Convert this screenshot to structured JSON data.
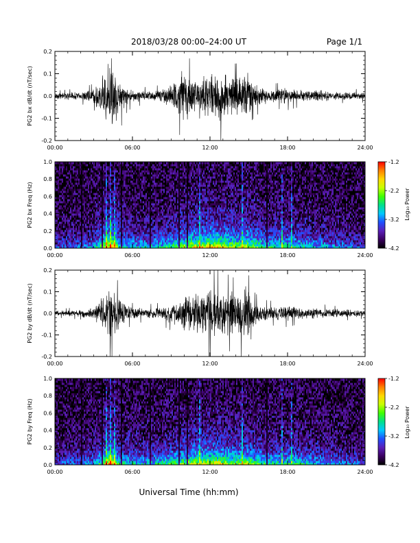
{
  "header": {
    "title": "2018/03/28   00:00–24:00 UT",
    "page": "Page 1/1"
  },
  "xlabel": "Universal Time (hh:mm)",
  "colorbar": {
    "label": "Log₁₀ Power",
    "ticks": [
      "-1.2",
      "-2.2",
      "-3.2",
      "-4.2"
    ],
    "range": [
      -4.2,
      -1.2
    ],
    "colors": [
      "#000000",
      "#3a005f",
      "#5a1fb8",
      "#1f4fff",
      "#00c8ff",
      "#00e08a",
      "#40ff00",
      "#c8ff00",
      "#ffd800",
      "#ff8000",
      "#ff0000"
    ]
  },
  "chart_data": [
    {
      "type": "line",
      "ylabel": "PG2 bx dB/dt (nT/sec)",
      "xlim": [
        0,
        24
      ],
      "ylim": [
        -0.2,
        0.2
      ],
      "xticks": [
        "00:00",
        "06:00",
        "12:00",
        "18:00",
        "24:00"
      ],
      "yticks": [
        "0.2",
        "0.1",
        "0.0",
        "-0.1",
        "-0.2"
      ],
      "series": [
        {
          "x": [
            0,
            1,
            2,
            3,
            3.5,
            4,
            4.3,
            4.6,
            4.9,
            5.2,
            5.5,
            6,
            7,
            8,
            9,
            9.5,
            10,
            10.5,
            11,
            11.5,
            12,
            12.5,
            13,
            13.5,
            14,
            14.5,
            14.8,
            15.2,
            16,
            17,
            18,
            19,
            20,
            21,
            22,
            23,
            24
          ],
          "y": [
            0.015,
            0.018,
            0.022,
            0.035,
            0.09,
            0.12,
            0.21,
            0.16,
            0.1,
            0.08,
            0.05,
            0.03,
            0.025,
            0.03,
            0.06,
            0.1,
            0.13,
            0.1,
            0.09,
            0.12,
            0.1,
            0.13,
            0.12,
            0.1,
            0.09,
            0.11,
            0.14,
            0.07,
            0.04,
            0.035,
            0.04,
            0.03,
            0.03,
            0.025,
            0.02,
            0.02,
            0.018
          ]
        }
      ]
    },
    {
      "type": "heatmap",
      "ylabel": "PG2 bx Freq (Hz)",
      "xlim": [
        0,
        24
      ],
      "ylim": [
        0,
        1.0
      ],
      "xticks": [
        "00:00",
        "06:00",
        "12:00",
        "18:00",
        "24:00"
      ],
      "yticks": [
        "1.0",
        "0.8",
        "0.6",
        "0.4",
        "0.2",
        "0.0"
      ],
      "zlim": [
        -4.2,
        -1.2
      ],
      "activity_x": [
        0,
        1,
        2,
        3,
        3.5,
        4,
        4.3,
        4.6,
        5,
        5.5,
        6,
        7,
        8,
        9,
        10,
        11,
        12,
        13,
        14,
        15,
        16,
        17,
        18,
        19,
        20,
        21,
        22,
        23,
        24
      ],
      "activity": [
        0.25,
        0.3,
        0.3,
        0.4,
        0.65,
        0.9,
        1.0,
        0.85,
        0.6,
        0.5,
        0.45,
        0.45,
        0.5,
        0.6,
        0.75,
        0.85,
        0.9,
        0.85,
        0.75,
        0.8,
        0.6,
        0.55,
        0.55,
        0.5,
        0.45,
        0.4,
        0.35,
        0.3,
        0.25
      ],
      "bright_columns": [
        4.0,
        4.3,
        4.6,
        11.2,
        14.5,
        17.6,
        18.3
      ],
      "dark_columns": [
        2.1,
        3.7,
        5.2,
        7.4,
        9.6,
        10.2,
        13.7,
        16.4
      ]
    },
    {
      "type": "line",
      "ylabel": "PG2 by dB/dt (nT/sec)",
      "xlim": [
        0,
        24
      ],
      "ylim": [
        -0.2,
        0.2
      ],
      "xticks": [
        "00:00",
        "06:00",
        "12:00",
        "18:00",
        "24:00"
      ],
      "yticks": [
        "0.2",
        "0.1",
        "0.0",
        "-0.1",
        "-0.2"
      ],
      "series": [
        {
          "x": [
            0,
            1,
            2,
            3,
            3.5,
            4,
            4.3,
            4.6,
            4.9,
            5.2,
            5.5,
            6,
            7,
            8,
            9,
            9.5,
            10,
            10.5,
            11,
            11.5,
            12,
            12.5,
            13,
            13.5,
            14,
            14.5,
            14.8,
            15.2,
            16,
            17,
            18,
            19,
            20,
            21,
            22,
            23,
            24
          ],
          "y": [
            0.012,
            0.015,
            0.018,
            0.03,
            0.07,
            0.1,
            0.17,
            0.12,
            0.09,
            0.07,
            0.05,
            0.03,
            0.025,
            0.03,
            0.05,
            0.07,
            0.09,
            0.1,
            0.1,
            0.12,
            0.14,
            0.13,
            0.12,
            0.11,
            0.1,
            0.13,
            0.15,
            0.07,
            0.04,
            0.035,
            0.04,
            0.03,
            0.03,
            0.025,
            0.02,
            0.02,
            0.015
          ]
        }
      ]
    },
    {
      "type": "heatmap",
      "ylabel": "PG2 by Freq (Hz)",
      "xlim": [
        0,
        24
      ],
      "ylim": [
        0,
        1.0
      ],
      "xticks": [
        "00:00",
        "06:00",
        "12:00",
        "18:00",
        "24:00"
      ],
      "yticks": [
        "1.0",
        "0.8",
        "0.6",
        "0.4",
        "0.2",
        "0.0"
      ],
      "zlim": [
        -4.2,
        -1.2
      ],
      "activity_x": [
        0,
        1,
        2,
        3,
        3.5,
        4,
        4.3,
        4.6,
        5,
        5.5,
        6,
        7,
        8,
        9,
        10,
        11,
        12,
        13,
        14,
        15,
        16,
        17,
        18,
        19,
        20,
        21,
        22,
        23,
        24
      ],
      "activity": [
        0.25,
        0.3,
        0.3,
        0.4,
        0.6,
        0.85,
        0.95,
        0.8,
        0.55,
        0.5,
        0.45,
        0.45,
        0.5,
        0.6,
        0.7,
        0.8,
        0.85,
        0.8,
        0.7,
        0.75,
        0.6,
        0.55,
        0.55,
        0.5,
        0.45,
        0.4,
        0.35,
        0.3,
        0.25
      ],
      "bright_columns": [
        4.0,
        4.3,
        4.6,
        11.2,
        14.5,
        17.6,
        18.3
      ],
      "dark_columns": [
        2.1,
        3.7,
        5.2,
        7.4,
        9.6,
        10.2,
        13.7,
        16.4
      ]
    }
  ]
}
